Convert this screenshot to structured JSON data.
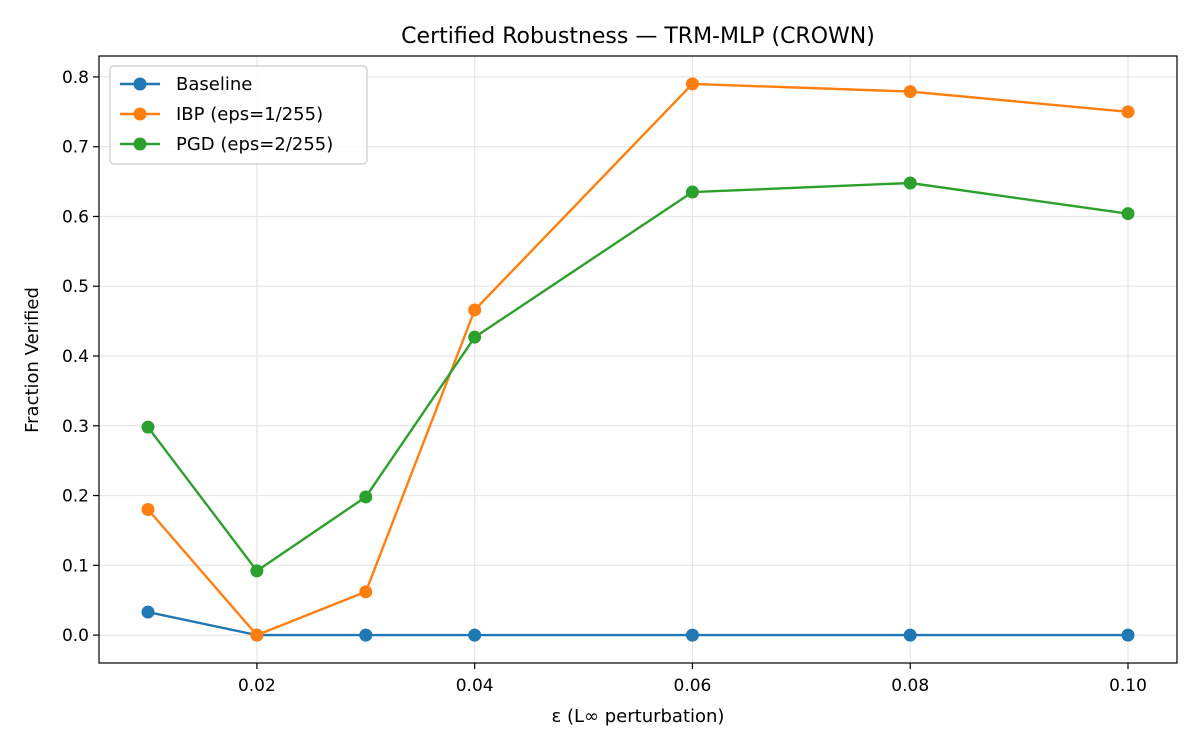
{
  "chart_data": {
    "type": "line",
    "title": "Certified Robustness — TRM-MLP (CROWN)",
    "xlabel": "ε (L∞ perturbation)",
    "ylabel": "Fraction Verified",
    "x": [
      0.01,
      0.02,
      0.03,
      0.04,
      0.06,
      0.08,
      0.1
    ],
    "xlim": [
      0.0055,
      0.1045
    ],
    "ylim": [
      -0.04,
      0.83
    ],
    "xticks": [
      0.02,
      0.04,
      0.06,
      0.08,
      0.1
    ],
    "xtick_labels": [
      "0.02",
      "0.04",
      "0.06",
      "0.08",
      "0.10"
    ],
    "yticks": [
      0.0,
      0.1,
      0.2,
      0.3,
      0.4,
      0.5,
      0.6,
      0.7,
      0.8
    ],
    "ytick_labels": [
      "0.0",
      "0.1",
      "0.2",
      "0.3",
      "0.4",
      "0.5",
      "0.6",
      "0.7",
      "0.8"
    ],
    "grid": true,
    "legend_position": "top-left",
    "series": [
      {
        "name": "Baseline",
        "color": "#1f77b4",
        "values": [
          0.033,
          0.0,
          0.0,
          0.0,
          0.0,
          0.0,
          0.0
        ]
      },
      {
        "name": "IBP (eps=1/255)",
        "color": "#ff7f0e",
        "values": [
          0.18,
          0.0,
          0.062,
          0.466,
          0.79,
          0.779,
          0.75
        ]
      },
      {
        "name": "PGD (eps=2/255)",
        "color": "#2ca02c",
        "values": [
          0.298,
          0.092,
          0.198,
          0.427,
          0.635,
          0.648,
          0.604
        ]
      }
    ]
  }
}
